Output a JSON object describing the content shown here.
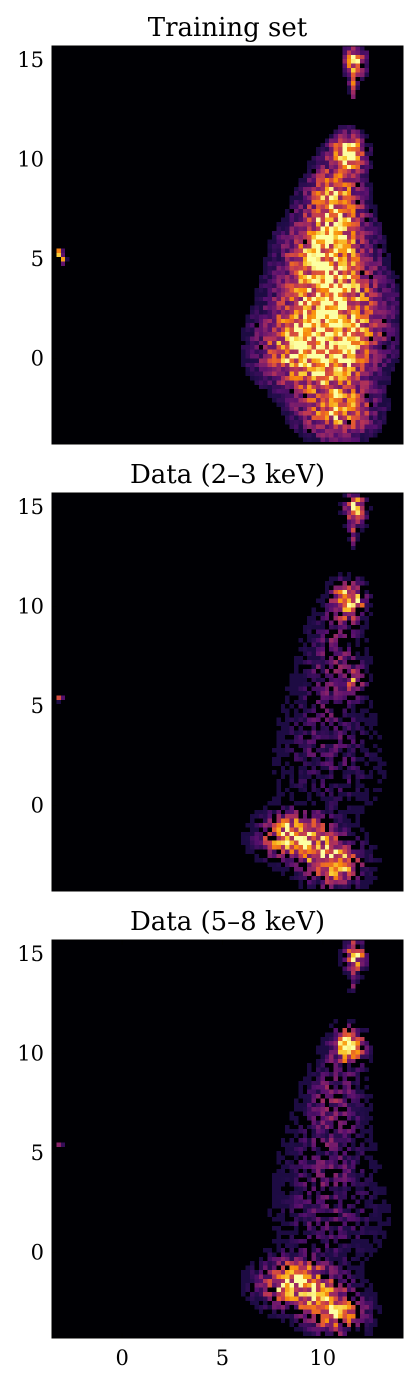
{
  "chart_data": [
    {
      "type": "heatmap",
      "title": "Training set",
      "colormap": "inferno",
      "background_color": "#000004",
      "xlim": [
        -3.5,
        14
      ],
      "ylim": [
        -4.3,
        15.7
      ],
      "yticks": [
        15,
        10,
        5,
        0
      ],
      "ytick_labels": [
        "15",
        "10",
        "5",
        "0"
      ],
      "xticks": [],
      "xtick_labels": [],
      "density": {
        "blobs": [
          {
            "x": 11.6,
            "y": 14.9,
            "sx": 0.35,
            "sy": 0.55,
            "w": 0.75
          },
          {
            "x": 11.5,
            "y": 13.6,
            "sx": 0.12,
            "sy": 0.4,
            "w": 0.4
          },
          {
            "x": 11.3,
            "y": 10.4,
            "sx": 0.55,
            "sy": 0.6,
            "w": 0.8
          },
          {
            "x": 10.6,
            "y": 8.0,
            "sx": 0.95,
            "sy": 1.4,
            "w": 0.55
          },
          {
            "x": 10.2,
            "y": 5.2,
            "sx": 1.45,
            "sy": 1.5,
            "w": 0.6
          },
          {
            "x": 10.4,
            "y": 2.2,
            "sx": 1.9,
            "sy": 1.6,
            "w": 0.62
          },
          {
            "x": 9.6,
            "y": 0.2,
            "sx": 1.8,
            "sy": 1.2,
            "w": 0.65
          },
          {
            "x": 10.7,
            "y": -2.6,
            "sx": 1.3,
            "sy": 1.0,
            "w": 0.6
          },
          {
            "x": -3.1,
            "y": 5.3,
            "sx": 0.12,
            "sy": 0.15,
            "w": 0.9
          },
          {
            "x": -2.9,
            "y": 4.9,
            "sx": 0.1,
            "sy": 0.1,
            "w": 0.7
          }
        ],
        "threshold": 0.09,
        "noise": 0.5,
        "gain": 1.2,
        "sparsity": 0.05
      }
    },
    {
      "type": "heatmap",
      "title": "Data (2–3 keV)",
      "colormap": "inferno",
      "background_color": "#000004",
      "xlim": [
        -3.5,
        14
      ],
      "ylim": [
        -4.3,
        15.7
      ],
      "yticks": [
        15,
        10,
        5,
        0
      ],
      "ytick_labels": [
        "15",
        "10",
        "5",
        "0"
      ],
      "xticks": [],
      "xtick_labels": [],
      "density": {
        "blobs": [
          {
            "x": 11.6,
            "y": 14.9,
            "sx": 0.35,
            "sy": 0.55,
            "w": 0.85
          },
          {
            "x": 11.5,
            "y": 13.6,
            "sx": 0.12,
            "sy": 0.4,
            "w": 0.45
          },
          {
            "x": 11.3,
            "y": 10.3,
            "sx": 0.55,
            "sy": 0.6,
            "w": 0.95
          },
          {
            "x": 11.6,
            "y": 6.3,
            "sx": 0.3,
            "sy": 0.4,
            "w": 0.45
          },
          {
            "x": 10.6,
            "y": 7.8,
            "sx": 0.95,
            "sy": 1.5,
            "w": 0.28
          },
          {
            "x": 10.2,
            "y": 4.5,
            "sx": 1.5,
            "sy": 1.8,
            "w": 0.18
          },
          {
            "x": 10.4,
            "y": 1.5,
            "sx": 1.9,
            "sy": 1.6,
            "w": 0.15
          },
          {
            "x": 8.6,
            "y": -1.6,
            "sx": 1.1,
            "sy": 0.75,
            "w": 0.95
          },
          {
            "x": 10.6,
            "y": -2.9,
            "sx": 1.0,
            "sy": 0.8,
            "w": 0.75
          },
          {
            "x": -3.1,
            "y": 5.4,
            "sx": 0.1,
            "sy": 0.1,
            "w": 0.6
          }
        ],
        "threshold": 0.06,
        "noise": 0.55,
        "gain": 1.0,
        "sparsity": 0.45
      }
    },
    {
      "type": "heatmap",
      "title": "Data (5–8 keV)",
      "colormap": "inferno",
      "background_color": "#000004",
      "xlim": [
        -3.5,
        14
      ],
      "ylim": [
        -4.3,
        15.7
      ],
      "yticks": [
        15,
        10,
        5,
        0
      ],
      "ytick_labels": [
        "15",
        "10",
        "5",
        "0"
      ],
      "xticks": [
        0,
        5,
        10
      ],
      "xtick_labels": [
        "0",
        "5",
        "10"
      ],
      "density": {
        "blobs": [
          {
            "x": 11.6,
            "y": 14.9,
            "sx": 0.35,
            "sy": 0.55,
            "w": 0.8
          },
          {
            "x": 11.5,
            "y": 13.6,
            "sx": 0.12,
            "sy": 0.4,
            "w": 0.4
          },
          {
            "x": 11.3,
            "y": 10.4,
            "sx": 0.55,
            "sy": 0.6,
            "w": 0.85
          },
          {
            "x": 10.6,
            "y": 7.8,
            "sx": 0.95,
            "sy": 1.5,
            "w": 0.3
          },
          {
            "x": 10.2,
            "y": 4.5,
            "sx": 1.5,
            "sy": 1.8,
            "w": 0.2
          },
          {
            "x": 10.4,
            "y": 1.5,
            "sx": 1.9,
            "sy": 1.6,
            "w": 0.18
          },
          {
            "x": 8.7,
            "y": -1.6,
            "sx": 1.2,
            "sy": 0.8,
            "w": 0.9
          },
          {
            "x": 10.7,
            "y": -3.0,
            "sx": 1.0,
            "sy": 0.8,
            "w": 0.7
          },
          {
            "x": -3.1,
            "y": 5.4,
            "sx": 0.1,
            "sy": 0.1,
            "w": 0.6
          }
        ],
        "threshold": 0.06,
        "noise": 0.55,
        "gain": 1.0,
        "sparsity": 0.4
      }
    }
  ]
}
